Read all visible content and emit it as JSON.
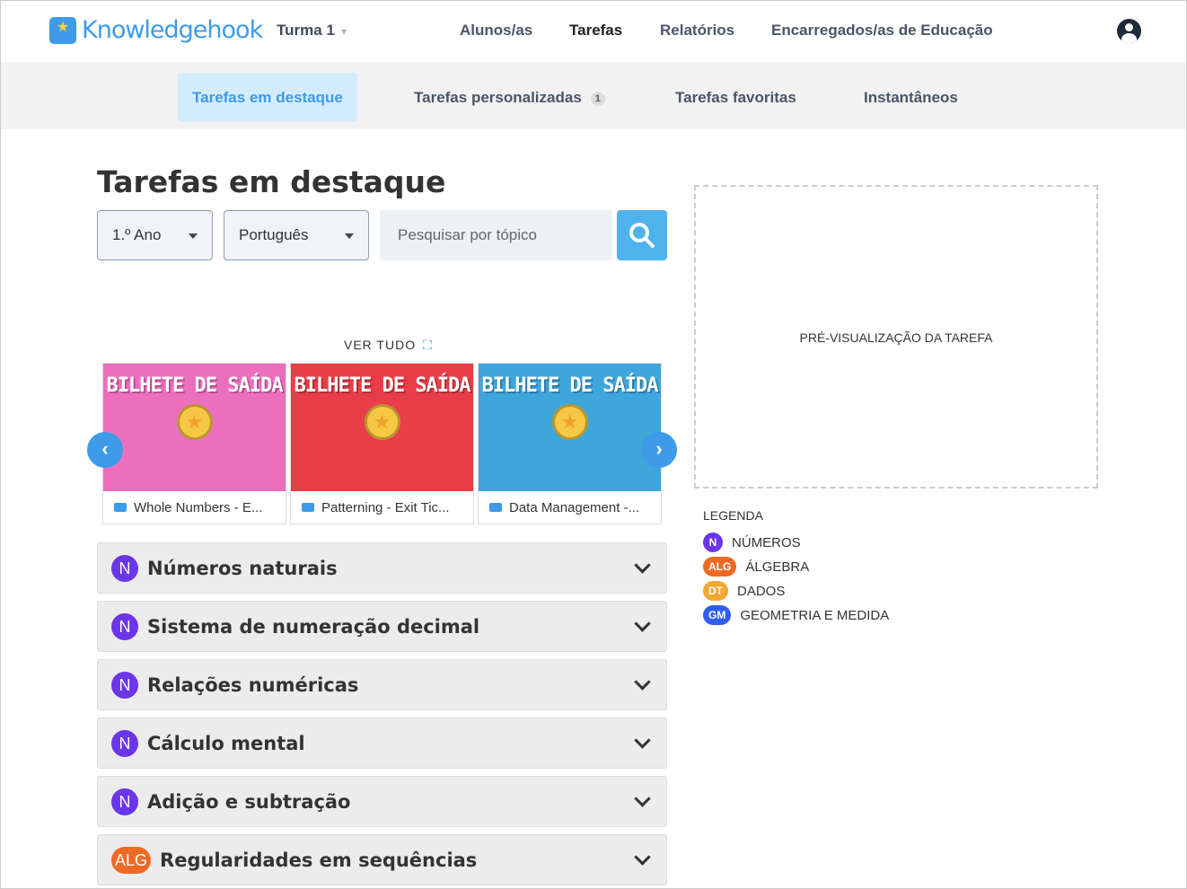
{
  "header": {
    "logo": "Knowledgehook",
    "class_selector": "Turma 1",
    "nav": [
      "Alunos/as",
      "Tarefas",
      "Relatórios",
      "Encarregados/as de Educação"
    ]
  },
  "subtabs": [
    {
      "label": "Tarefas em destaque",
      "active": true
    },
    {
      "label": "Tarefas personalizadas",
      "badge": "1"
    },
    {
      "label": "Tarefas favoritas"
    },
    {
      "label": "Instantâneos"
    }
  ],
  "page_title": "Tarefas em destaque",
  "filters": {
    "grade": "1.º Ano",
    "subject": "Português",
    "search_placeholder": "Pesquisar por tópico"
  },
  "ver_tudo": "VER TUDO",
  "cards": [
    {
      "banner": "BILHETE DE SAÍDA",
      "title": "Whole Numbers - E...",
      "color": "#ec6fbd"
    },
    {
      "banner": "BILHETE DE SAÍDA",
      "title": "Patterning - Exit Tic...",
      "color": "#e83e48"
    },
    {
      "banner": "BILHETE DE SAÍDA",
      "title": "Data Management -...",
      "color": "#3fa6dc"
    }
  ],
  "topics": [
    {
      "tag": "N",
      "label": "Números naturais"
    },
    {
      "tag": "N",
      "label": "Sistema de numeração decimal"
    },
    {
      "tag": "N",
      "label": "Relações numéricas"
    },
    {
      "tag": "N",
      "label": "Cálculo mental"
    },
    {
      "tag": "N",
      "label": "Adição e subtração"
    },
    {
      "tag": "ALG",
      "label": "Regularidades em sequências"
    }
  ],
  "preview": "PRÉ-VISUALIZAÇÃO DA TAREFA",
  "legend": {
    "title": "LEGENDA",
    "items": [
      {
        "tag": "N",
        "label": "NÚMEROS",
        "color": "#6b35e8"
      },
      {
        "tag": "ALG",
        "label": "ÁLGEBRA",
        "color": "#ee6a24"
      },
      {
        "tag": "DT",
        "label": "DADOS",
        "color": "#f3a832"
      },
      {
        "tag": "GM",
        "label": "GEOMETRIA E MEDIDA",
        "color": "#2f5ff0"
      }
    ]
  },
  "colors": {
    "accent": "#3d9be9",
    "N": "#6b35e8",
    "ALG": "#ee6a24"
  }
}
